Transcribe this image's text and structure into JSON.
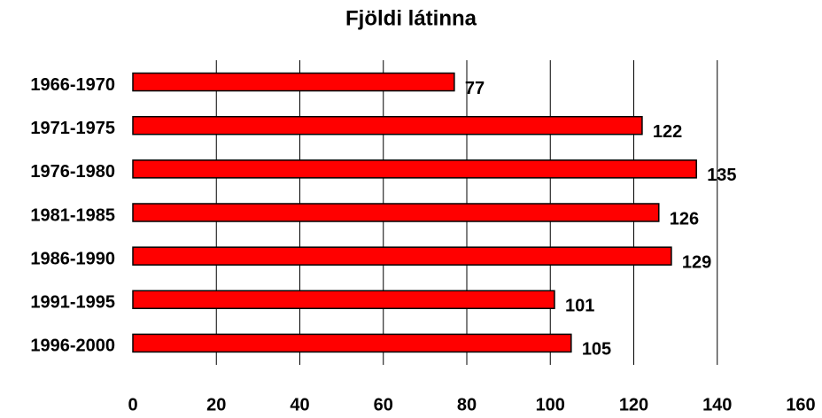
{
  "chart_data": {
    "type": "barh",
    "title": "Fjöldi látinna",
    "categories": [
      "1966-1970",
      "1971-1975",
      "1976-1980",
      "1981-1985",
      "1986-1990",
      "1991-1995",
      "1996-2000"
    ],
    "values": [
      77,
      122,
      135,
      126,
      129,
      101,
      105
    ],
    "color": "#ff0000",
    "xlim": [
      0,
      160
    ],
    "xticks": [
      0,
      20,
      40,
      60,
      80,
      100,
      120,
      140,
      160
    ],
    "grid": true
  }
}
